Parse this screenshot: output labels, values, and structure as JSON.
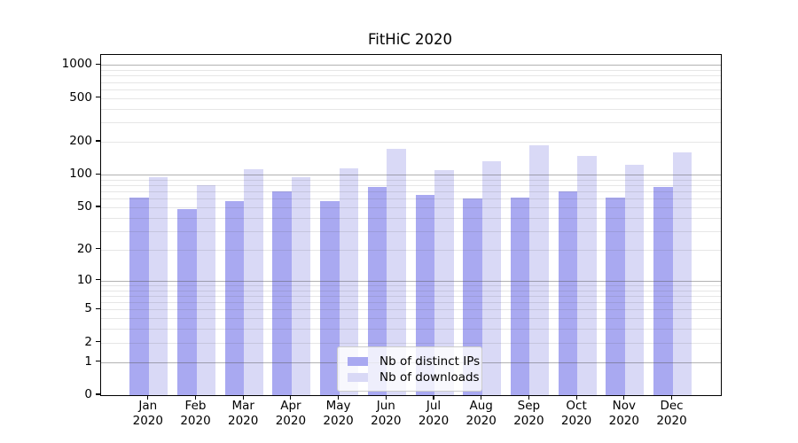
{
  "chart_data": {
    "type": "bar",
    "title": "FitHiC 2020",
    "categories": [
      "Jan",
      "Feb",
      "Mar",
      "Apr",
      "May",
      "Jun",
      "Jul",
      "Aug",
      "Sep",
      "Oct",
      "Nov",
      "Dec"
    ],
    "category_year_label": "2020",
    "series": [
      {
        "name": "Nb of distinct IPs",
        "color": "#a9a9f1",
        "values": [
          61,
          48,
          57,
          70,
          57,
          77,
          65,
          60,
          61,
          70,
          61,
          77
        ]
      },
      {
        "name": "Nb of downloads",
        "color": "#d9d9f6",
        "values": [
          95,
          80,
          112,
          95,
          115,
          172,
          110,
          134,
          185,
          148,
          123,
          160
        ]
      }
    ],
    "y_axis": {
      "scale": "symlog",
      "ylim": [
        0,
        1237
      ],
      "tick_labels": [
        0,
        1,
        2,
        5,
        10,
        20,
        50,
        100,
        200,
        500,
        1000
      ],
      "major_gridlines": [
        1,
        10,
        100,
        1000
      ],
      "minor_gridlines": [
        2,
        3,
        4,
        5,
        6,
        7,
        8,
        9,
        20,
        30,
        40,
        50,
        60,
        70,
        80,
        90,
        200,
        300,
        400,
        500,
        600,
        700,
        800,
        900
      ]
    },
    "x_axis": {
      "tick_count": 12
    },
    "legend": {
      "position": "inside-bottom-center"
    },
    "grid": "on",
    "colors": {
      "spine": "#000000",
      "major_grid": "rgba(85,85,85,0.45)",
      "minor_grid": "rgba(85,85,85,0.15)"
    }
  }
}
